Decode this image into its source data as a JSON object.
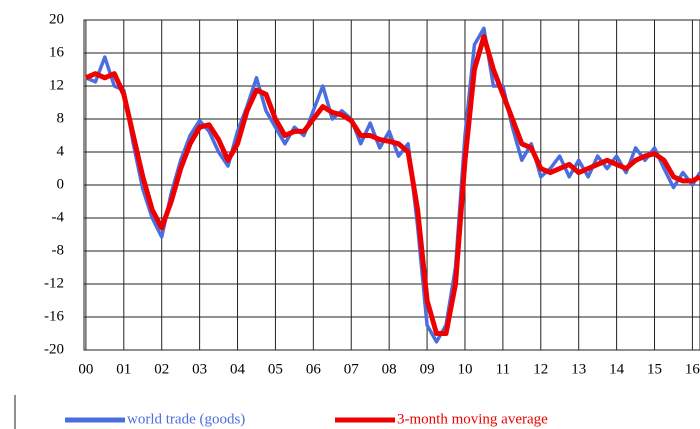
{
  "chart_data": {
    "type": "line",
    "x": [
      0,
      0.25,
      0.5,
      0.75,
      1,
      1.25,
      1.5,
      1.75,
      2,
      2.25,
      2.5,
      2.75,
      3,
      3.25,
      3.5,
      3.75,
      4,
      4.25,
      4.5,
      4.75,
      5,
      5.25,
      5.5,
      5.75,
      6,
      6.25,
      6.5,
      6.75,
      7,
      7.25,
      7.5,
      7.75,
      8,
      8.25,
      8.5,
      8.75,
      9,
      9.25,
      9.5,
      9.75,
      10,
      10.25,
      10.5,
      10.75,
      11,
      11.25,
      11.5,
      11.75,
      12,
      12.25,
      12.5,
      12.75,
      13,
      13.25,
      13.5,
      13.75,
      14,
      14.25,
      14.5,
      14.75,
      15,
      15.25,
      15.5,
      15.75,
      16,
      16.2
    ],
    "series": [
      {
        "name": "world trade (goods)",
        "color": "#4a6ee0",
        "values": [
          13,
          12.5,
          15.5,
          12,
          11.5,
          5,
          -0.5,
          -4,
          -6.3,
          -1,
          3,
          6,
          7.8,
          6.5,
          4,
          2.3,
          6.5,
          9.5,
          13,
          9,
          7,
          5,
          7,
          6,
          9,
          12,
          8,
          9,
          8,
          5,
          7.5,
          4.5,
          6.5,
          3.5,
          5,
          -5,
          -17,
          -19,
          -17,
          -10,
          6,
          17,
          19,
          12,
          12,
          7,
          3,
          5,
          1,
          2,
          3.5,
          1,
          3,
          1,
          3.5,
          2,
          3.5,
          1.5,
          4.5,
          3,
          4.5,
          2,
          -0.3,
          1.5,
          0,
          1.5
        ]
      },
      {
        "name": "3-month moving average",
        "color": "#ee0000",
        "values": [
          13,
          13.5,
          13,
          13.5,
          11,
          6,
          1,
          -3,
          -5.2,
          -2,
          2,
          5,
          7,
          7.3,
          5.5,
          3,
          5,
          9,
          11.5,
          11,
          8,
          6,
          6.5,
          6.5,
          8,
          9.5,
          8.8,
          8.5,
          7.8,
          6,
          6,
          5.5,
          5.3,
          5,
          4,
          -3,
          -14,
          -18,
          -18,
          -12,
          3,
          14,
          18,
          14,
          11,
          8,
          5,
          4.5,
          2,
          1.5,
          2,
          2.5,
          1.5,
          2,
          2.5,
          3,
          2.5,
          2,
          3,
          3.5,
          3.8,
          3,
          1,
          0.5,
          0.5,
          1
        ]
      }
    ],
    "xlim": [
      -0.05,
      16.2
    ],
    "xticks": [
      {
        "value": 0,
        "label": "00"
      },
      {
        "value": 1,
        "label": "01"
      },
      {
        "value": 2,
        "label": "02"
      },
      {
        "value": 3,
        "label": "03"
      },
      {
        "value": 4,
        "label": "04"
      },
      {
        "value": 5,
        "label": "05"
      },
      {
        "value": 6,
        "label": "06"
      },
      {
        "value": 7,
        "label": "07"
      },
      {
        "value": 8,
        "label": "08"
      },
      {
        "value": 9,
        "label": "09"
      },
      10,
      11,
      12,
      13,
      14,
      15,
      16
    ],
    "ylim": [
      -20,
      20
    ],
    "yticks": [
      -20,
      -16,
      -12,
      -8,
      -4,
      0,
      4,
      8,
      12,
      16,
      20
    ],
    "grid": true,
    "legend": "bottom"
  }
}
